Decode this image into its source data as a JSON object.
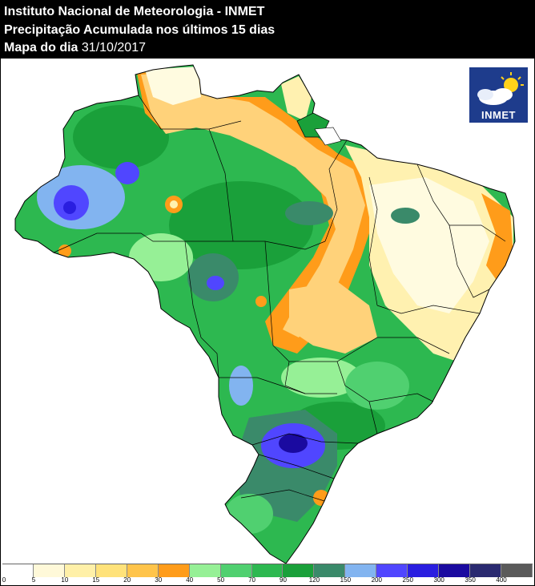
{
  "header": {
    "line1": "Instituto Nacional de Meteorologia - INMET",
    "line2": "Precipitação Acumulada nos últimos 15 dias",
    "line3_label": "Mapa do dia ",
    "line3_date": "31/10/2017"
  },
  "logo": {
    "text": "INMET",
    "icon": "sun-cloud-icon",
    "background": "#1e3c8c"
  },
  "legend": {
    "unit_hint": "",
    "colors": [
      "#ffffff",
      "#fff9d9",
      "#fff0a8",
      "#ffe27a",
      "#ffc44a",
      "#ff9c1a",
      "#96f096",
      "#50d070",
      "#2db850",
      "#1aa03a",
      "#3a8a6a",
      "#82b4f0",
      "#5046ff",
      "#2a1ee0",
      "#1a0aa0",
      "#2a2a70",
      "#5a5a5a"
    ],
    "ticks": [
      "0",
      "5",
      "10",
      "15",
      "20",
      "30",
      "40",
      "50",
      "70",
      "90",
      "120",
      "150",
      "200",
      "250",
      "300",
      "350",
      "400"
    ]
  },
  "map": {
    "region": "Brasil",
    "palette": {
      "dry": "#fffbe0",
      "very_light": "#fff1b0",
      "light": "#ffd27a",
      "orange": "#ff9c1a",
      "light_green": "#96f096",
      "green": "#2db850",
      "dark_green": "#1aa03a",
      "teal": "#3a8a6a",
      "light_blue": "#82b4f0",
      "blue": "#5046ff",
      "deep_blue": "#1a0aa0",
      "border": "#000000"
    }
  }
}
